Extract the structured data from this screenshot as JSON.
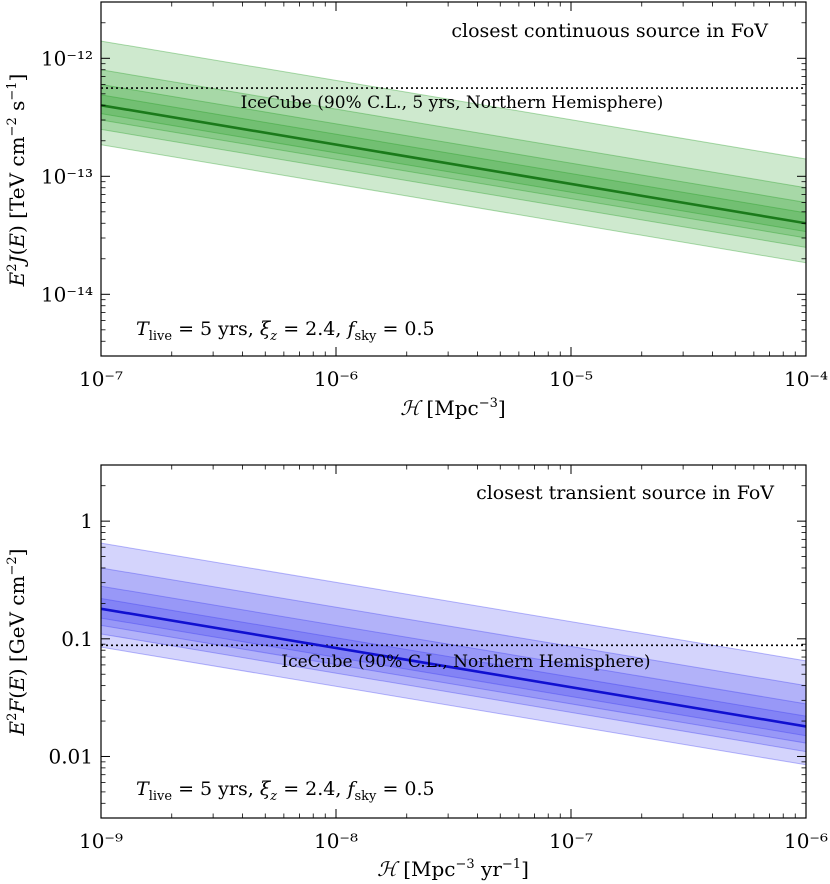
{
  "chart_data": [
    {
      "type": "line",
      "title": "closest continuous source in FoV",
      "xlabel": "ℋ [Mpc⁻³]",
      "ylabel": "E²J(E) [TeV cm⁻² s⁻¹]",
      "xscale": "log",
      "yscale": "log",
      "xlim": [
        1e-07,
        0.0001
      ],
      "ylim": [
        3e-15,
        3e-12
      ],
      "x_tick_labels": [
        "10⁻⁷",
        "10⁻⁶",
        "10⁻⁵",
        "10⁻⁴"
      ],
      "y_tick_labels": [
        "10⁻¹⁴",
        "10⁻¹³",
        "10⁻¹²"
      ],
      "x_tick_values": [
        1e-07,
        1e-06,
        1e-05,
        0.0001
      ],
      "y_tick_values": [
        1e-14,
        1e-13,
        1e-12
      ],
      "series": [
        {
          "name": "median",
          "x": [
            1e-07,
            0.0001
          ],
          "y": [
            4e-13,
            4e-14
          ],
          "color": "#1a7a1a"
        }
      ],
      "bands": [
        {
          "name": "outer band",
          "x": [
            1e-07,
            0.0001
          ],
          "lower": [
            1.85e-13,
            1.85e-14
          ],
          "upper": [
            1.4e-12,
            1.4e-13
          ],
          "color": "#1f9a1f",
          "opacity": 0.22
        },
        {
          "name": "middle band",
          "x": [
            1e-07,
            0.0001
          ],
          "lower": [
            2.5e-13,
            2.5e-14
          ],
          "upper": [
            8e-13,
            8e-14
          ],
          "color": "#1f9a1f",
          "opacity": 0.22
        },
        {
          "name": "inner band",
          "x": [
            1e-07,
            0.0001
          ],
          "lower": [
            3e-13,
            3e-14
          ],
          "upper": [
            6e-13,
            6e-14
          ],
          "color": "#1f9a1f",
          "opacity": 0.22
        },
        {
          "name": "core band",
          "x": [
            1e-07,
            0.0001
          ],
          "lower": [
            3.4e-13,
            3.4e-14
          ],
          "upper": [
            4.9e-13,
            4.9e-14
          ],
          "color": "#1f9a1f",
          "opacity": 0.22
        }
      ],
      "reference": {
        "label": "IceCube (90% C.L., 5 yrs, Northern Hemisphere)",
        "y": 5.6e-13,
        "style": "dotted"
      },
      "annotation": "T_live = 5 yrs, ξ_z = 2.4, f_sky = 0.5"
    },
    {
      "type": "line",
      "title": "closest transient source in FoV",
      "xlabel": "ℋ [Mpc⁻³ yr⁻¹]",
      "ylabel": "E²F(E) [GeV cm⁻²]",
      "xscale": "log",
      "yscale": "log",
      "xlim": [
        1e-09,
        1e-06
      ],
      "ylim": [
        0.003,
        3
      ],
      "x_tick_labels": [
        "10⁻⁹",
        "10⁻⁸",
        "10⁻⁷",
        "10⁻⁶"
      ],
      "y_tick_labels": [
        "0.01",
        "0.1",
        "1"
      ],
      "x_tick_values": [
        1e-09,
        1e-08,
        1e-07,
        1e-06
      ],
      "y_tick_values": [
        0.01,
        0.1,
        1
      ],
      "series": [
        {
          "name": "median",
          "x": [
            1e-09,
            1e-06
          ],
          "y": [
            0.18,
            0.018
          ],
          "color": "#1010d0"
        }
      ],
      "bands": [
        {
          "name": "outer band",
          "x": [
            1e-09,
            1e-06
          ],
          "lower": [
            0.085,
            0.0085
          ],
          "upper": [
            0.65,
            0.065
          ],
          "color": "#3a3af0",
          "opacity": 0.22
        },
        {
          "name": "middle band",
          "x": [
            1e-09,
            1e-06
          ],
          "lower": [
            0.11,
            0.011
          ],
          "upper": [
            0.4,
            0.04
          ],
          "color": "#3a3af0",
          "opacity": 0.22
        },
        {
          "name": "inner band",
          "x": [
            1e-09,
            1e-06
          ],
          "lower": [
            0.13,
            0.013
          ],
          "upper": [
            0.28,
            0.028
          ],
          "color": "#3a3af0",
          "opacity": 0.22
        },
        {
          "name": "core band",
          "x": [
            1e-09,
            1e-06
          ],
          "lower": [
            0.15,
            0.015
          ],
          "upper": [
            0.22,
            0.022
          ],
          "color": "#3a3af0",
          "opacity": 0.22
        }
      ],
      "reference": {
        "label": "IceCube (90% C.L., Northern Hemisphere)",
        "y": 0.088,
        "style": "dotted"
      },
      "annotation": "T_live = 5 yrs, ξ_z = 2.4, f_sky = 0.5"
    }
  ]
}
